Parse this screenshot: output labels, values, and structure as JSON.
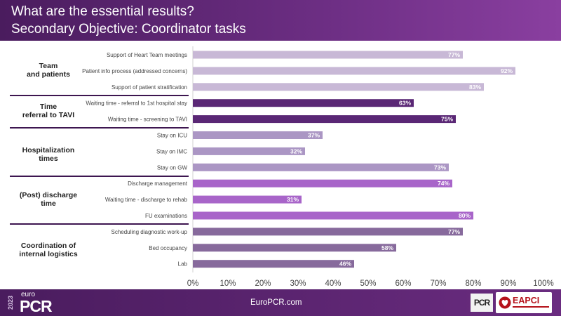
{
  "header": {
    "title": "What are the essential results?",
    "subtitle": "Secondary Objective: Coordinator tasks"
  },
  "groups": [
    {
      "label": "Team\nand patients"
    },
    {
      "label": "Time\nreferral to TAVI"
    },
    {
      "label": "Hospitalization\ntimes"
    },
    {
      "label": "(Post) discharge\ntime"
    },
    {
      "label": "Coordination of\ninternal logistics"
    }
  ],
  "chart_data": {
    "type": "bar",
    "orientation": "horizontal",
    "categories": [
      "Support of Heart Team meetings",
      "Patient info process (addressed concerns)",
      "Support of patient stratification",
      "Waiting time - referral to 1st hospital stay",
      "Waiting time - screening to TAVI",
      "Stay on ICU",
      "Stay on IMC",
      "Stay on GW",
      "Discharge management",
      "Waiting time - discharge to rehab",
      "FU examinations",
      "Scheduling diagnostic work-up",
      "Bed occupancy",
      "Lab"
    ],
    "values": [
      77,
      92,
      83,
      63,
      75,
      37,
      32,
      73,
      74,
      31,
      80,
      77,
      58,
      46
    ],
    "data_labels": [
      "77%",
      "92%",
      "83%",
      "63%",
      "75%",
      "37%",
      "32%",
      "73%",
      "74%",
      "31%",
      "80%",
      "77%",
      "58%",
      "46%"
    ],
    "xlim": [
      0,
      100
    ],
    "x_ticks": [
      "0%",
      "10%",
      "20%",
      "30%",
      "40%",
      "50%",
      "60%",
      "70%",
      "80%",
      "90%",
      "100%"
    ],
    "group_of_bar": [
      0,
      0,
      0,
      1,
      1,
      2,
      2,
      2,
      3,
      3,
      3,
      4,
      4,
      4
    ],
    "group_colors": [
      "#c8b8d6",
      "#5a2775",
      "#ab96c4",
      "#a865c9",
      "#876a9c"
    ],
    "grid": false,
    "legend": "none"
  },
  "footer": {
    "year": "2023",
    "brand_small": "euro",
    "brand_large": "PCR",
    "site": "EuroPCR.com",
    "badge_pcr": "PCR",
    "badge_eapci": "EAPCI"
  }
}
